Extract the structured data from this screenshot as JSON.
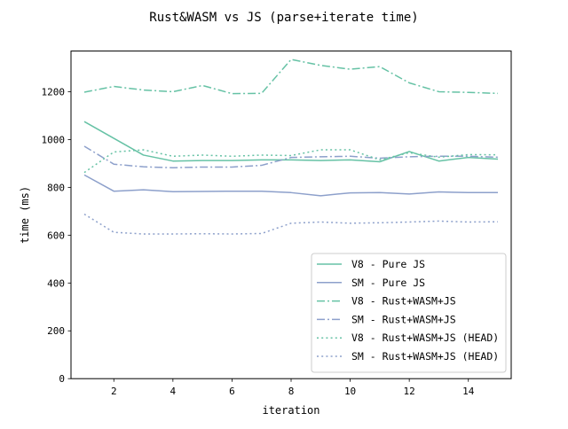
{
  "chart_data": {
    "type": "line",
    "title": "Rust&WASM vs JS (parse+iterate time)",
    "xlabel": "iteration",
    "ylabel": "time (ms)",
    "xlim": [
      0.55,
      15.45
    ],
    "ylim": [
      0,
      1370
    ],
    "xticks": [
      2,
      4,
      6,
      8,
      10,
      12,
      14
    ],
    "yticks": [
      0,
      200,
      400,
      600,
      800,
      1000,
      1200
    ],
    "grid": false,
    "legend_position": "lower right",
    "x": [
      1,
      2,
      3,
      4,
      5,
      6,
      7,
      8,
      9,
      10,
      11,
      12,
      13,
      14,
      15
    ],
    "series": [
      {
        "name": "V8 - Pure JS",
        "color": "#66c2a5",
        "linestyle": "solid",
        "values": [
          1075,
          1005,
          935,
          910,
          912,
          912,
          915,
          915,
          912,
          915,
          907,
          950,
          910,
          925,
          918
        ]
      },
      {
        "name": "SM - Pure JS",
        "color": "#8da0cb",
        "linestyle": "solid",
        "values": [
          852,
          784,
          790,
          782,
          783,
          784,
          784,
          778,
          765,
          777,
          778,
          772,
          781,
          778,
          778
        ]
      },
      {
        "name": "V8 - Rust+WASM+JS",
        "color": "#66c2a5",
        "linestyle": "dashdot",
        "values": [
          1198,
          1222,
          1207,
          1200,
          1226,
          1192,
          1193,
          1335,
          1310,
          1294,
          1305,
          1237,
          1200,
          1197,
          1193
        ]
      },
      {
        "name": "SM - Rust+WASM+JS",
        "color": "#8da0cb",
        "linestyle": "dashdot",
        "values": [
          972,
          897,
          886,
          882,
          885,
          885,
          892,
          925,
          928,
          930,
          922,
          928,
          930,
          930,
          926
        ]
      },
      {
        "name": "V8 - Rust+WASM+JS (HEAD)",
        "color": "#66c2a5",
        "linestyle": "dotted",
        "values": [
          862,
          948,
          957,
          930,
          935,
          930,
          935,
          933,
          957,
          957,
          915,
          945,
          926,
          937,
          936
        ]
      },
      {
        "name": "SM - Rust+WASM+JS (HEAD)",
        "color": "#8da0cb",
        "linestyle": "dotted",
        "values": [
          688,
          612,
          605,
          605,
          606,
          605,
          607,
          650,
          655,
          650,
          652,
          655,
          659,
          655,
          656
        ]
      }
    ]
  }
}
